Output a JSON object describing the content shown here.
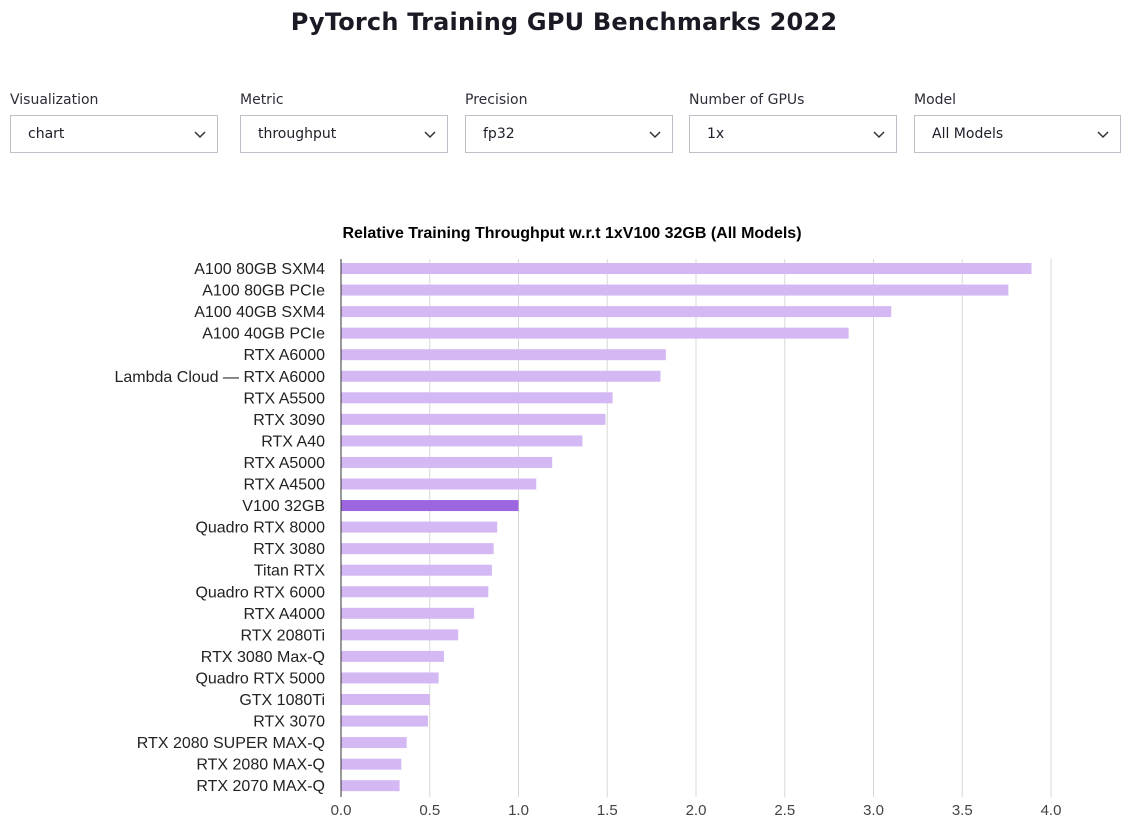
{
  "page": {
    "title": "PyTorch Training GPU Benchmarks 2022"
  },
  "filters": [
    {
      "label": "Visualization",
      "value": "chart"
    },
    {
      "label": "Metric",
      "value": "throughput"
    },
    {
      "label": "Precision",
      "value": "fp32"
    },
    {
      "label": "Number of GPUs",
      "value": "1x"
    },
    {
      "label": "Model",
      "value": "All Models"
    }
  ],
  "chart_data": {
    "type": "bar",
    "orientation": "horizontal",
    "title": "Relative Training Throughput w.r.t 1xV100 32GB (All Models)",
    "xlabel": "",
    "ylabel": "",
    "xlim": [
      0,
      4.22
    ],
    "x_ticks": [
      "0.0",
      "0.5",
      "1.0",
      "1.5",
      "2.0",
      "2.5",
      "3.0",
      "3.5",
      "4.0"
    ],
    "grid": "vertical",
    "colors": {
      "bar": "#d4b8f4",
      "highlight": "#9b66e0",
      "grid": "#d8d8d8",
      "axis": "#333333"
    },
    "highlight_category": "V100 32GB",
    "categories": [
      "A100 80GB SXM4",
      "A100 80GB PCIe",
      "A100 40GB SXM4",
      "A100 40GB PCIe",
      "RTX A6000",
      "Lambda Cloud — RTX A6000",
      "RTX A5500",
      "RTX 3090",
      "RTX A40",
      "RTX A5000",
      "RTX A4500",
      "V100 32GB",
      "Quadro RTX 8000",
      "RTX 3080",
      "Titan RTX",
      "Quadro RTX 6000",
      "RTX A4000",
      "RTX 2080Ti",
      "RTX 3080 Max-Q",
      "Quadro RTX 5000",
      "GTX 1080Ti",
      "RTX 3070",
      "RTX 2080 SUPER MAX-Q",
      "RTX 2080 MAX-Q",
      "RTX 2070 MAX-Q"
    ],
    "values": [
      3.89,
      3.76,
      3.1,
      2.86,
      1.83,
      1.8,
      1.53,
      1.49,
      1.36,
      1.19,
      1.1,
      1.0,
      0.88,
      0.86,
      0.85,
      0.83,
      0.75,
      0.66,
      0.58,
      0.55,
      0.5,
      0.49,
      0.37,
      0.34,
      0.33
    ]
  }
}
